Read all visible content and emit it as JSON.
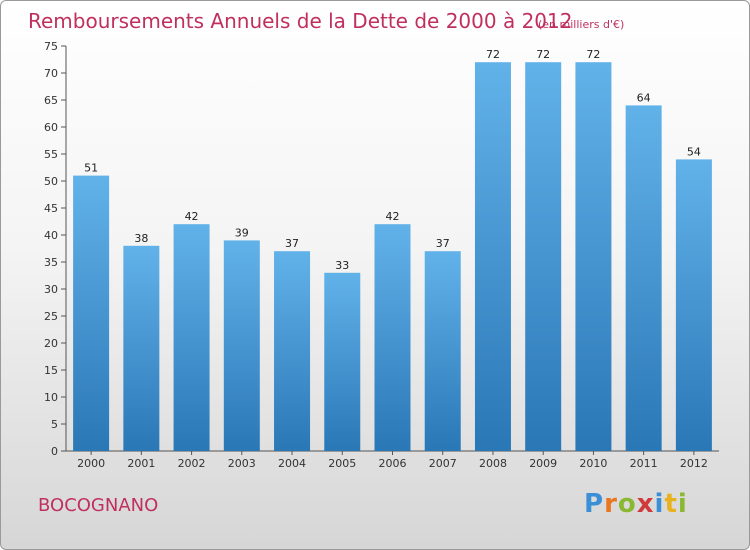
{
  "title": "Remboursements Annuels de la Dette de 2000 à 2012",
  "subtitle": "(en milliers d'€)",
  "commune": "BOCOGNANO",
  "logo": {
    "letters": [
      "P",
      "r",
      "o",
      "x",
      "i",
      "t",
      "i"
    ]
  },
  "colors": {
    "bar_light": "#62b2ea",
    "bar_dark": "#2a77b6",
    "title": "#c0305e"
  },
  "chart_data": {
    "type": "bar",
    "title": "Remboursements Annuels de la Dette de 2000 à 2012",
    "subtitle": "(en milliers d'€)",
    "categories": [
      "2000",
      "2001",
      "2002",
      "2003",
      "2004",
      "2005",
      "2006",
      "2007",
      "2008",
      "2009",
      "2010",
      "2011",
      "2012"
    ],
    "values": [
      51,
      38,
      42,
      39,
      37,
      33,
      42,
      37,
      72,
      72,
      72,
      64,
      54
    ],
    "ylim": [
      0,
      75
    ],
    "yticks": [
      0,
      5,
      10,
      15,
      20,
      25,
      30,
      35,
      40,
      45,
      50,
      55,
      60,
      65,
      70,
      75
    ],
    "grid": false,
    "legend": "none"
  }
}
